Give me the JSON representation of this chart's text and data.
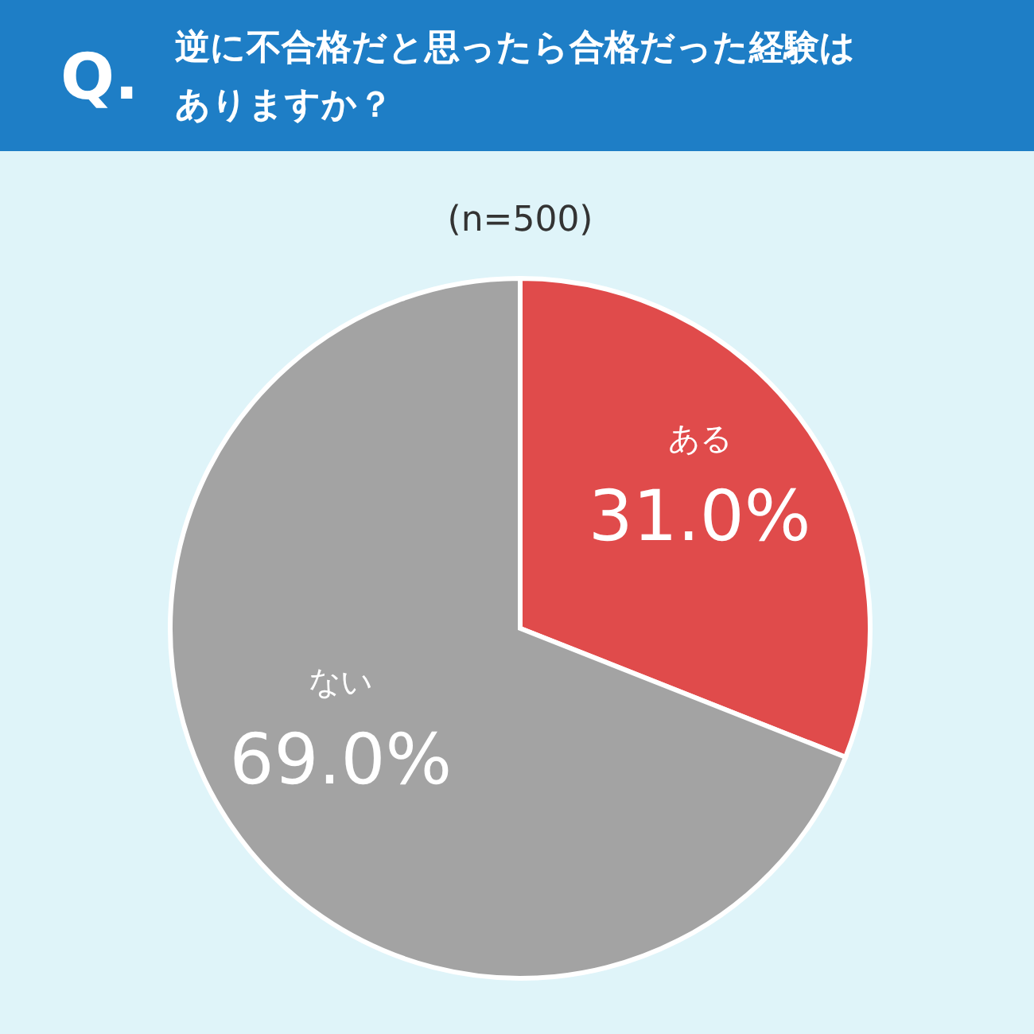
{
  "chart_data": {
    "type": "pie",
    "title": "逆に不合格だと思ったら合格だった経験はありますか？",
    "subtitle": "(n=500)",
    "annotations": [
      "Q."
    ],
    "categories": [
      "ある",
      "ない"
    ],
    "values": [
      31.0,
      69.0
    ],
    "colors": [
      "#e04b4b",
      "#a3a3a3"
    ],
    "value_labels": [
      "31.0%",
      "69.0%"
    ]
  }
}
